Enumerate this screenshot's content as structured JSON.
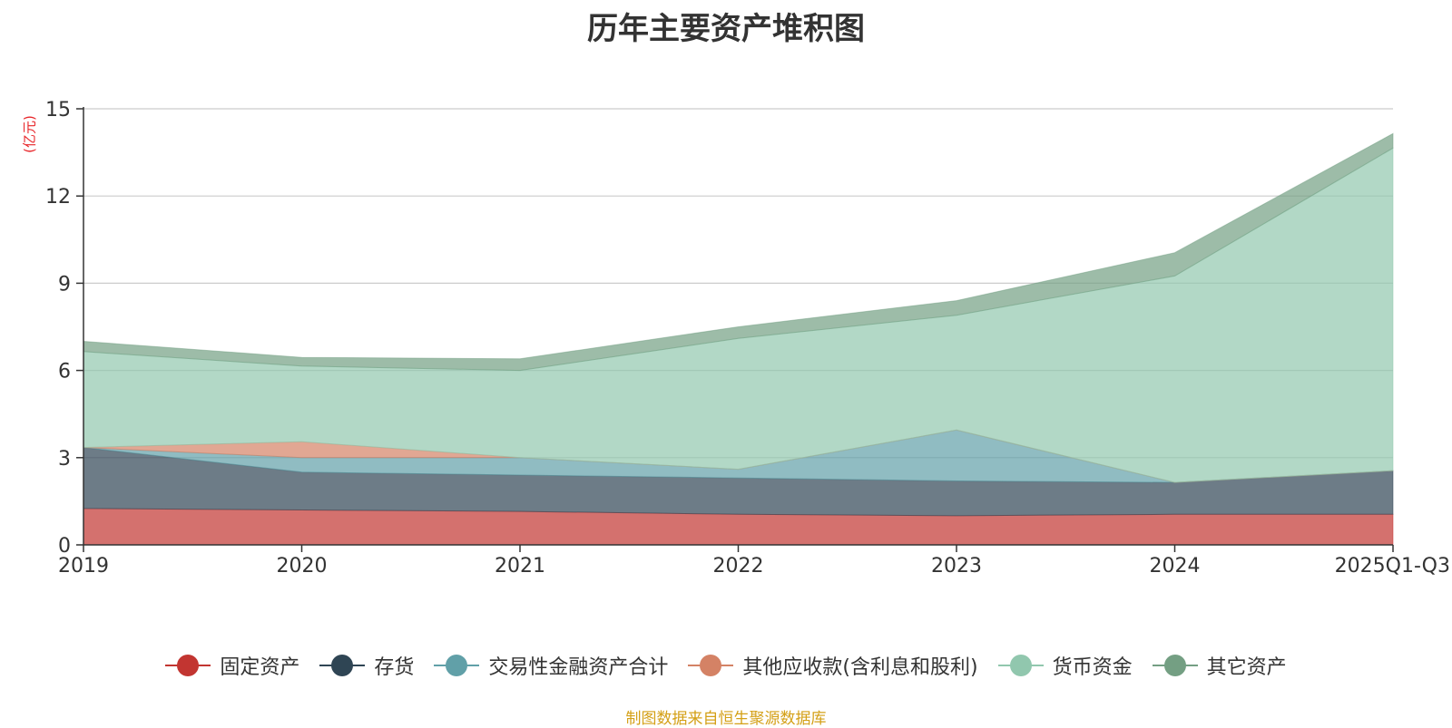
{
  "chart_data": {
    "type": "area",
    "stacked": true,
    "title": "历年主要资产堆积图",
    "ylabel": "(亿元)",
    "categories": [
      "2019",
      "2020",
      "2021",
      "2022",
      "2023",
      "2024",
      "2025Q1-Q3"
    ],
    "ylim": [
      0,
      15
    ],
    "yticks": [
      0,
      3,
      6,
      9,
      12,
      15
    ],
    "grid": true,
    "legend_position": "bottom",
    "series": [
      {
        "name": "固定资产",
        "color": "#c23531",
        "values": [
          1.25,
          1.2,
          1.15,
          1.05,
          1.0,
          1.05,
          1.05
        ]
      },
      {
        "name": "存货",
        "color": "#2f4554",
        "values": [
          2.1,
          1.3,
          1.25,
          1.25,
          1.2,
          1.1,
          1.5
        ]
      },
      {
        "name": "交易性金融资产合计",
        "color": "#61a0a8",
        "values": [
          0.0,
          0.5,
          0.6,
          0.3,
          1.75,
          0.0,
          0.0
        ]
      },
      {
        "name": "其他应收款(含利息和股利)",
        "color": "#d48265",
        "values": [
          0.0,
          0.55,
          0.0,
          0.0,
          0.0,
          0.0,
          0.0
        ]
      },
      {
        "name": "货币资金",
        "color": "#91c7ae",
        "values": [
          3.3,
          2.6,
          3.0,
          4.5,
          3.95,
          7.1,
          11.1
        ]
      },
      {
        "name": "其它资产",
        "color": "#749f83",
        "values": [
          0.35,
          0.3,
          0.4,
          0.4,
          0.5,
          0.8,
          0.5
        ]
      }
    ]
  },
  "source_text": "制图数据来自恒生聚源数据库"
}
